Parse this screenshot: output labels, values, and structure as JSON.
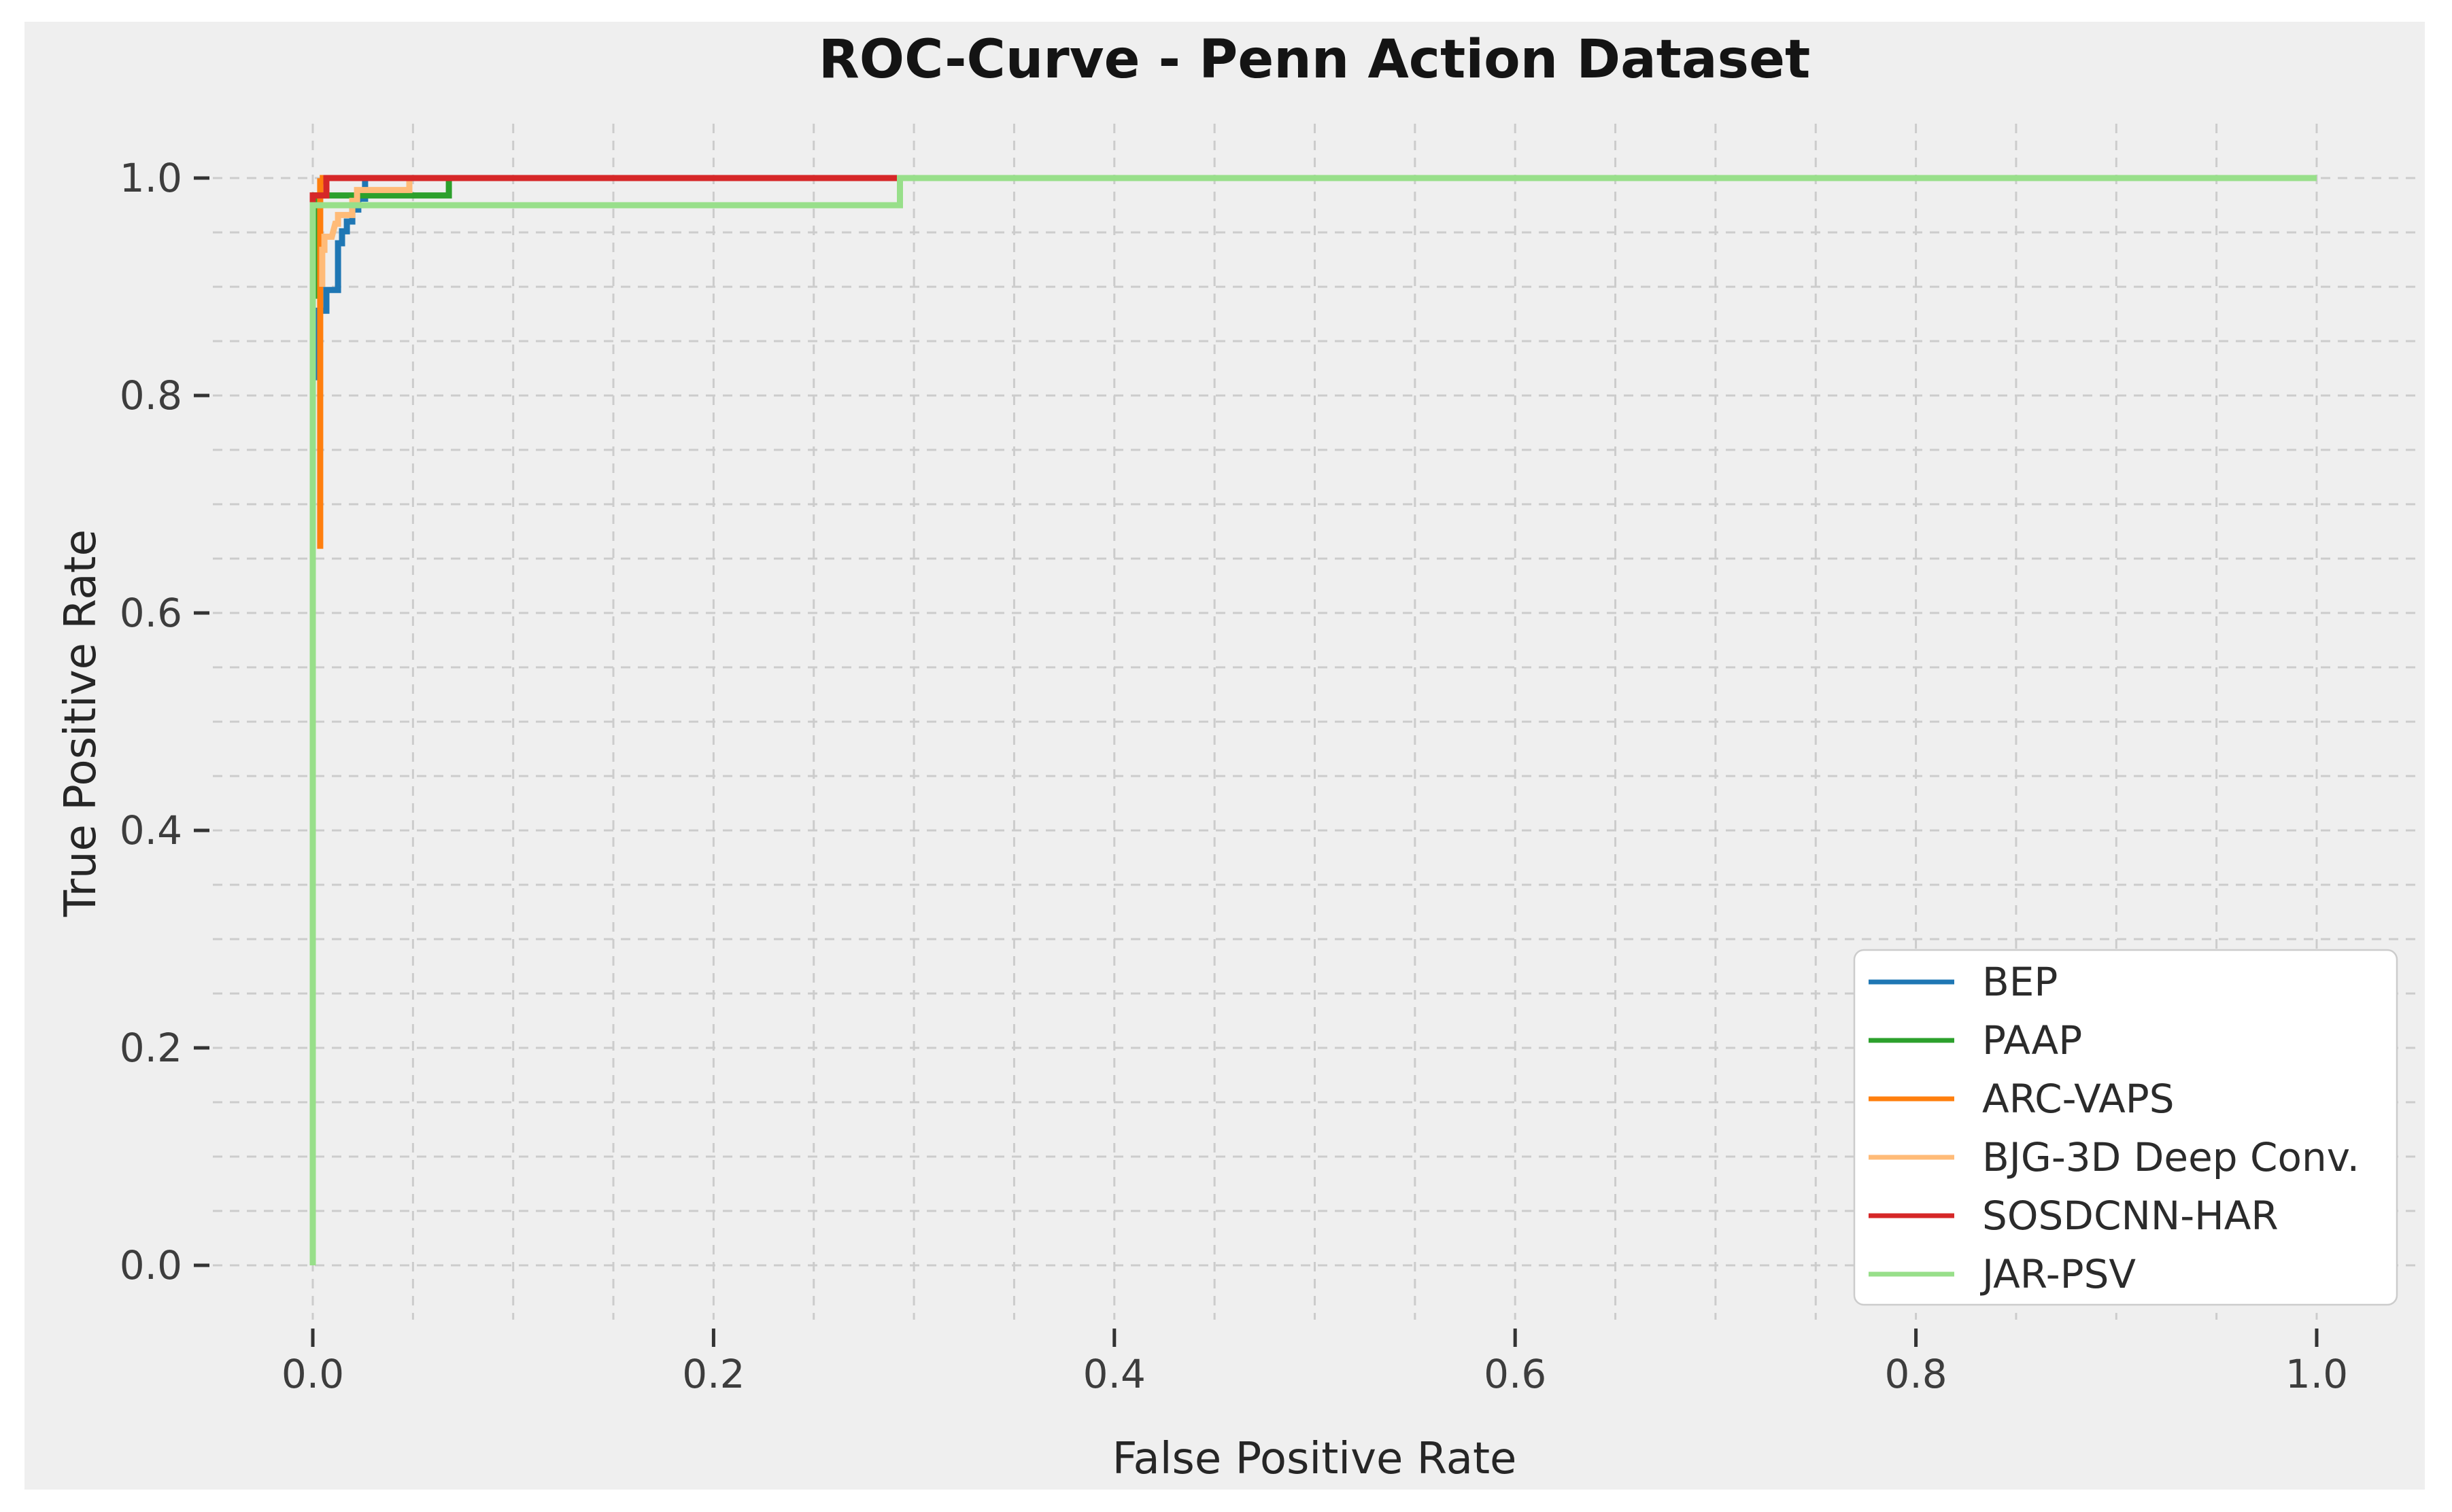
{
  "figure": {
    "title": "ROC-Curve - Penn Action Dataset",
    "xlabel": "False Positive Rate",
    "ylabel": "True Positive Rate"
  },
  "colors": {
    "page_background": "#ffffff",
    "figure_background": "#efefef",
    "grid": "#cccccc",
    "tick_mark": "#333333",
    "tick_label": "#3d3d3d",
    "axis_label": "#262626",
    "title_text": "#141414",
    "legend_background": "#ffffff",
    "legend_border": "#cccccc",
    "legend_text": "#2b2b2b"
  },
  "chart_data": {
    "type": "line",
    "title": "ROC-Curve - Penn Action Dataset",
    "xlabel": "False Positive Rate",
    "ylabel": "True Positive Rate",
    "xlim": [
      -0.05,
      1.05
    ],
    "ylim": [
      -0.05,
      1.05
    ],
    "x_ticks": [
      0.0,
      0.2,
      0.4,
      0.6,
      0.8,
      1.0
    ],
    "x_tick_labels": [
      "0.0",
      "0.2",
      "0.4",
      "0.6",
      "0.8",
      "1.0"
    ],
    "y_ticks": [
      0.0,
      0.2,
      0.4,
      0.6,
      0.8,
      1.0
    ],
    "y_tick_labels": [
      "0.0",
      "0.2",
      "0.4",
      "0.6",
      "0.8",
      "1.0"
    ],
    "grid": {
      "on": true,
      "interval": 0.05,
      "style": "dashed"
    },
    "legend_position": "lower right",
    "series": [
      {
        "name": "BEP",
        "color": "#1f77b4",
        "points": [
          [
            0.002,
            0.814
          ],
          [
            0.002,
            0.878
          ],
          [
            0.0068,
            0.878
          ],
          [
            0.0068,
            0.897
          ],
          [
            0.0126,
            0.897
          ],
          [
            0.0126,
            0.94
          ],
          [
            0.0146,
            0.94
          ],
          [
            0.0146,
            0.951
          ],
          [
            0.017,
            0.951
          ],
          [
            0.017,
            0.96
          ],
          [
            0.0197,
            0.96
          ],
          [
            0.0197,
            0.971
          ],
          [
            0.0227,
            0.971
          ],
          [
            0.0227,
            0.981
          ],
          [
            0.0261,
            0.981
          ],
          [
            0.0261,
            1.0
          ],
          [
            1.0,
            1.0
          ]
        ]
      },
      {
        "name": "PAAP",
        "color": "#2ca02c",
        "points": [
          [
            0.0013,
            0.889
          ],
          [
            0.0013,
            0.984
          ],
          [
            0.0679,
            0.984
          ],
          [
            0.0679,
            1.0
          ],
          [
            1.0,
            1.0
          ]
        ]
      },
      {
        "name": "ARC-VAPS",
        "color": "#ff7f0e",
        "points": [
          [
            0.0037,
            0.659
          ],
          [
            0.0037,
            0.997
          ],
          [
            0.005,
            0.997
          ],
          [
            0.005,
            1.0
          ],
          [
            1.0,
            1.0
          ]
        ]
      },
      {
        "name": "BJG-3D Deep Conv.",
        "color": "#ffbb78",
        "points": [
          [
            0.0047,
            0.9
          ],
          [
            0.0047,
            0.934
          ],
          [
            0.0058,
            0.934
          ],
          [
            0.0058,
            0.946
          ],
          [
            0.0095,
            0.946
          ],
          [
            0.0112,
            0.958
          ],
          [
            0.0126,
            0.958
          ],
          [
            0.0126,
            0.966
          ],
          [
            0.0197,
            0.966
          ],
          [
            0.0197,
            0.979
          ],
          [
            0.0221,
            0.979
          ],
          [
            0.0221,
            0.989
          ],
          [
            0.0482,
            0.989
          ],
          [
            0.0482,
            1.0
          ],
          [
            1.0,
            1.0
          ]
        ]
      },
      {
        "name": "SOSDCNN-HAR",
        "color": "#d62728",
        "points": [
          [
            0.0,
            0.97
          ],
          [
            0.0,
            0.984
          ],
          [
            0.0068,
            0.984
          ],
          [
            0.0068,
            1.0
          ],
          [
            1.0,
            1.0
          ]
        ]
      },
      {
        "name": "JAR-PSV",
        "color": "#98df8a",
        "points": [
          [
            0.0,
            0.0
          ],
          [
            0.0,
            0.975
          ],
          [
            0.293,
            0.975
          ],
          [
            0.293,
            1.0
          ],
          [
            1.0,
            1.0
          ]
        ]
      }
    ]
  }
}
